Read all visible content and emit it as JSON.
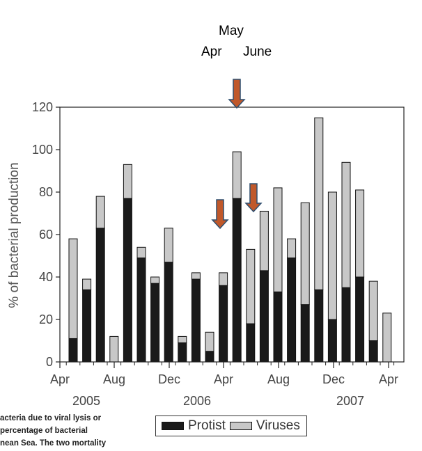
{
  "annotations": {
    "may": "May",
    "apr": "Apr",
    "june": "June"
  },
  "caption_lines": [
    "acteria due to viral lysis or",
    "percentage of bacterial",
    "nean Sea. The two mortality"
  ],
  "colors": {
    "protist": "#1a1a1a",
    "viruses": "#c8c8c8",
    "arrow_fill": "#c0582a",
    "arrow_stroke": "#2f4f6f"
  },
  "chart_data": {
    "type": "bar",
    "stacked": true,
    "ylabel": "% of bacterial production",
    "ylim": [
      0,
      120
    ],
    "yticks": [
      0,
      20,
      40,
      60,
      80,
      100,
      120
    ],
    "x_tick_labels": [
      "Apr",
      "Aug",
      "Dec",
      "Apr",
      "Aug",
      "Dec",
      "Apr"
    ],
    "year_labels": [
      "2005",
      "2006",
      "2007"
    ],
    "legend": [
      "Protist",
      "Viruses"
    ],
    "legend_position": "bottom",
    "grid": false,
    "series": [
      {
        "name": "Protist",
        "values": [
          11,
          34,
          63,
          0,
          77,
          49,
          37,
          47,
          9,
          39,
          5,
          36,
          77,
          18,
          43,
          33,
          49,
          27,
          34,
          20,
          35,
          40,
          10,
          0
        ]
      },
      {
        "name": "Viruses",
        "values": [
          47,
          5,
          15,
          12,
          16,
          5,
          3,
          16,
          3,
          3,
          9,
          6,
          22,
          35,
          28,
          49,
          9,
          48,
          81,
          60,
          59,
          41,
          28,
          23
        ]
      }
    ]
  }
}
